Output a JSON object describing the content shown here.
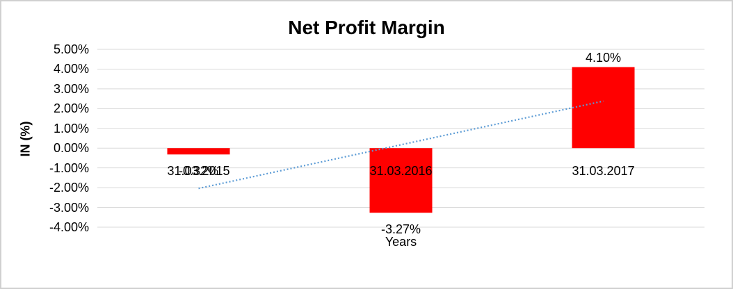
{
  "chart_data": {
    "type": "bar",
    "title": "Net Profit Margin",
    "xlabel": "Years",
    "ylabel": "IN (%)",
    "categories": [
      "31.03.2015",
      "31.03.2016",
      "31.03.2017"
    ],
    "values": [
      -0.32,
      -3.27,
      4.1
    ],
    "data_labels": [
      "-0.32%",
      "-3.27%",
      "4.10%"
    ],
    "ylim": [
      -4,
      5
    ],
    "ytick_labels": [
      "5.00%",
      "4.00%",
      "3.00%",
      "2.00%",
      "1.00%",
      "0.00%",
      "-1.00%",
      "-2.00%",
      "-3.00%",
      "-4.00%"
    ],
    "grid": true,
    "legend": "none",
    "colors": {
      "bar": "#FF0000",
      "gridline": "#D9D9D9",
      "text": "#000000",
      "border": "#D0D0D0",
      "background": "#FFFFFF"
    },
    "trendline": {
      "type": "linear",
      "style": "dotted",
      "color": "#5B9BD5",
      "start_value": -2.04,
      "end_value": 2.38
    }
  }
}
